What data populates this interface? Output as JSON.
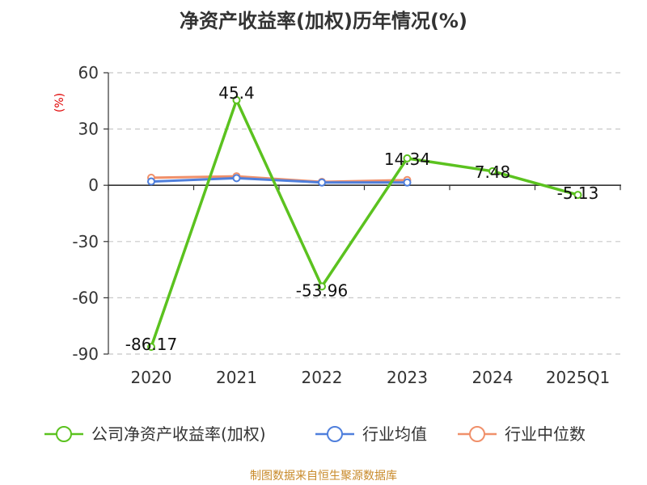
{
  "colors": {
    "company": "#5bc21f",
    "industry_avg": "#4f7fdc",
    "industry_median": "#f0906a",
    "axis": "#333333",
    "grid": "#c8c8c8",
    "unit": "#e00000",
    "source": "#c88a2a"
  },
  "chart_data": {
    "type": "line",
    "title": "净资产收益率(加权)历年情况(%)",
    "ylabel": "(%)",
    "xlabel": "",
    "categories": [
      "2020",
      "2021",
      "2022",
      "2023",
      "2024",
      "2025Q1"
    ],
    "ylim": [
      -90,
      60
    ],
    "yticks": [
      60,
      30,
      0,
      -30,
      -60,
      -90
    ],
    "grid": true,
    "legend_position": "bottom",
    "series": [
      {
        "name": "公司净资产收益率(加权)",
        "color": "#5bc21f",
        "values": [
          -86.17,
          45.4,
          -53.96,
          14.34,
          7.48,
          -5.13
        ],
        "labels": [
          "-86.17",
          "45.4",
          "-53.96",
          "14.34",
          "7.48",
          "-5.13"
        ]
      },
      {
        "name": "行业均值",
        "color": "#4f7fdc",
        "values": [
          2.0,
          3.8,
          1.5,
          1.5,
          null,
          null
        ]
      },
      {
        "name": "行业中位数",
        "color": "#f0906a",
        "values": [
          4.0,
          4.8,
          1.8,
          2.8,
          null,
          null
        ]
      }
    ]
  },
  "source": "制图数据来自恒生聚源数据库"
}
